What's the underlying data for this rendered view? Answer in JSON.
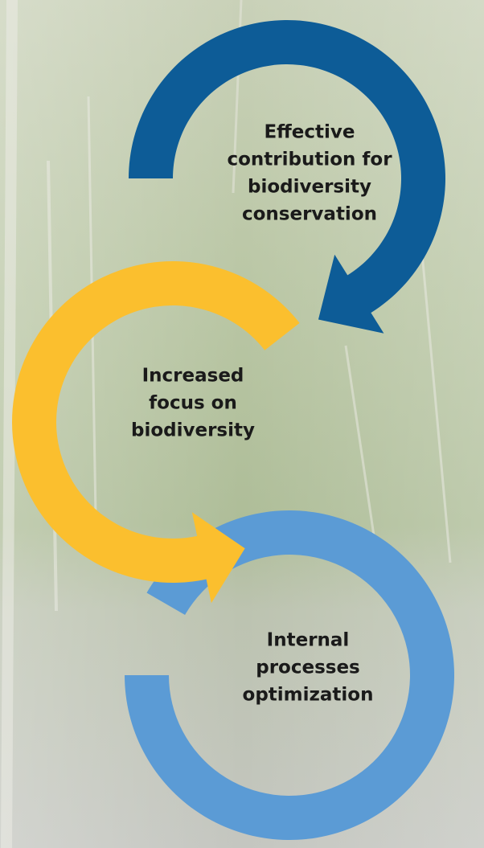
{
  "nodes": [
    {
      "label_lines": [
        "Effective",
        "contribution for",
        "biodiversity",
        "conservation"
      ]
    },
    {
      "label_lines": [
        "Increased",
        "focus on",
        "biodiversity"
      ]
    },
    {
      "label_lines": [
        "Internal",
        "processes",
        "optimization"
      ]
    }
  ]
}
